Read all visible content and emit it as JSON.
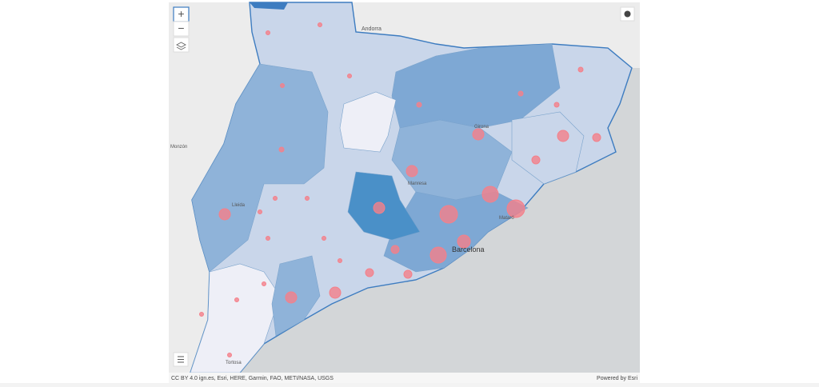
{
  "map": {
    "labels": [
      "Andorra",
      "Monzón",
      "Barcelona",
      "Mataró",
      "Tortosa",
      "Manresa",
      "Girona",
      "Lleida"
    ]
  },
  "controls": {
    "zoom_in": "+",
    "zoom_out": "−"
  },
  "attribution": "CC BY 4.0 ign.es, Esri, HERE, Garmin, FAO, METI/NASA, USGS",
  "powered_by": "Powered by Esri"
}
